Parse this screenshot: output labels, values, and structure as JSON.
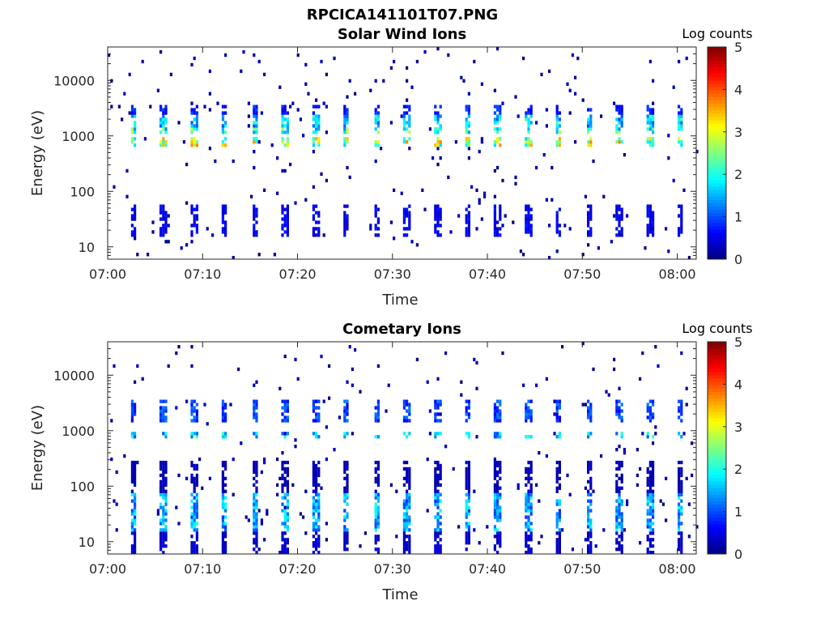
{
  "figure_title": "RPCICA141101T07.PNG",
  "chart_data": [
    {
      "type": "heatmap",
      "title": "Solar Wind Ions",
      "xlabel": "Time",
      "ylabel": "Energy (eV)",
      "x_range": [
        "07:00",
        "08:02"
      ],
      "x_ticks": [
        "07:00",
        "07:10",
        "07:20",
        "07:30",
        "07:40",
        "07:50",
        "08:00"
      ],
      "y_scale": "log",
      "y_range": [
        6,
        40000
      ],
      "y_ticks": [
        "10",
        "100",
        "1000",
        "10000"
      ],
      "colorbar": {
        "label": "Log counts",
        "range": [
          0,
          5
        ],
        "ticks": [
          "0",
          "1",
          "2",
          "3",
          "4",
          "5"
        ],
        "colormap": "jet"
      },
      "grid": false,
      "scan_period_min": 3.2,
      "first_scan_time": "07:02:24",
      "bands": [
        {
          "energy_eV": [
            600,
            900
          ],
          "log_counts": 3.0
        },
        {
          "energy_eV": [
            1100,
            1500
          ],
          "log_counts": 2.3
        },
        {
          "energy_eV": [
            1500,
            2500
          ],
          "log_counts": 1.8
        },
        {
          "energy_eV": [
            2500,
            3500
          ],
          "log_counts": 0.8
        },
        {
          "energy_eV": [
            15,
            60
          ],
          "log_counts": 0.6
        }
      ],
      "background_log_counts": 0.1
    },
    {
      "type": "heatmap",
      "title": "Cometary Ions",
      "xlabel": "Time",
      "ylabel": "Energy (eV)",
      "x_range": [
        "07:00",
        "08:02"
      ],
      "x_ticks": [
        "07:00",
        "07:10",
        "07:20",
        "07:30",
        "07:40",
        "07:50",
        "08:00"
      ],
      "y_scale": "log",
      "y_range": [
        6,
        40000
      ],
      "y_ticks": [
        "10",
        "100",
        "1000",
        "10000"
      ],
      "colorbar": {
        "label": "Log counts",
        "range": [
          0,
          5
        ],
        "ticks": [
          "0",
          "1",
          "2",
          "3",
          "4",
          "5"
        ],
        "colormap": "jet"
      },
      "grid": false,
      "scan_period_min": 3.2,
      "first_scan_time": "07:02:24",
      "bands": [
        {
          "energy_eV": [
            700,
            950
          ],
          "log_counts": 1.8
        },
        {
          "energy_eV": [
            1400,
            3500
          ],
          "log_counts": 1.0
        },
        {
          "energy_eV": [
            15,
            80
          ],
          "log_counts": 1.6
        },
        {
          "energy_eV": [
            80,
            300
          ],
          "log_counts": 0.3
        },
        {
          "energy_eV": [
            6,
            15
          ],
          "log_counts": 0.4
        }
      ],
      "background_log_counts": 0.05
    }
  ]
}
